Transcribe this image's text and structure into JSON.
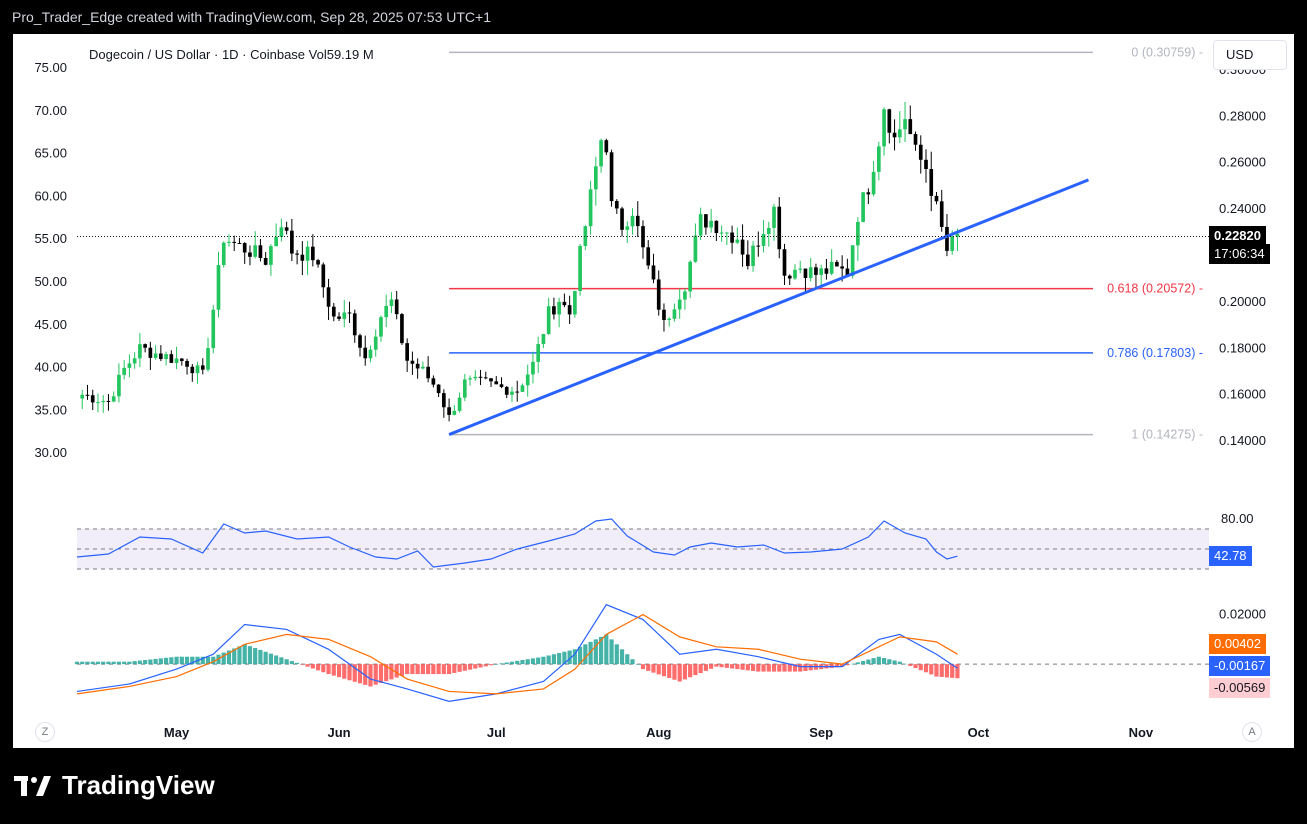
{
  "header": {
    "text": "Pro_Trader_Edge created with TradingView.com, Sep 28, 2025 07:53 UTC+1"
  },
  "legend": {
    "text": "Dogecoin / US Dollar · 1D · Coinbase  Vol59.19 M"
  },
  "currency_button": "USD",
  "buttons": {
    "left": "Z",
    "right": "A"
  },
  "footer": {
    "brand": "TradingView"
  },
  "colors": {
    "up": "#22c55e",
    "down": "#000000",
    "trend": "#2962ff",
    "fib_red": "#f23645",
    "fib_blue": "#2962ff",
    "fib_gray": "#b2b5be",
    "rsi": "#2962ff",
    "macd": "#2962ff",
    "signal": "#ff6d00"
  },
  "current": {
    "price": "0.22820",
    "countdown": "17:06:34"
  },
  "chart_data": [
    {
      "type": "candlestick",
      "title": "Dogecoin / US Dollar · 1D · Coinbase",
      "volume": "59.19 M",
      "x_labels": [
        "May",
        "Jun",
        "Jul",
        "Aug",
        "Sep",
        "Oct",
        "Nov"
      ],
      "left_axis": [
        "75.00",
        "70.00",
        "65.00",
        "60.00",
        "55.00",
        "50.00",
        "45.00",
        "40.00",
        "35.00",
        "30.00"
      ],
      "right_axis": [
        "0.30000",
        "0.28000",
        "0.26000",
        "0.24000",
        "0.22000",
        "0.20000",
        "0.18000",
        "0.16000",
        "0.14000"
      ],
      "ylim": [
        0.1301,
        0.3155
      ],
      "date_range": [
        "2025-04-12",
        "2025-11-14"
      ],
      "closes": [
        [
          "2025-04-13",
          0.16
        ],
        [
          "2025-04-18",
          0.157
        ],
        [
          "2025-04-21",
          0.171
        ],
        [
          "2025-04-24",
          0.18
        ],
        [
          "2025-04-28",
          0.177
        ],
        [
          "2025-05-03",
          0.174
        ],
        [
          "2025-05-06",
          0.168
        ],
        [
          "2025-05-08",
          0.197
        ],
        [
          "2025-05-10",
          0.228
        ],
        [
          "2025-05-12",
          0.225
        ],
        [
          "2025-05-15",
          0.222
        ],
        [
          "2025-05-18",
          0.218
        ],
        [
          "2025-05-21",
          0.235
        ],
        [
          "2025-05-23",
          0.222
        ],
        [
          "2025-05-27",
          0.22
        ],
        [
          "2025-05-31",
          0.193
        ],
        [
          "2025-06-03",
          0.194
        ],
        [
          "2025-06-06",
          0.176
        ],
        [
          "2025-06-09",
          0.194
        ],
        [
          "2025-06-11",
          0.2
        ],
        [
          "2025-06-14",
          0.175
        ],
        [
          "2025-06-17",
          0.17
        ],
        [
          "2025-06-20",
          0.162
        ],
        [
          "2025-06-22",
          0.15
        ],
        [
          "2025-06-25",
          0.165
        ],
        [
          "2025-06-29",
          0.165
        ],
        [
          "2025-07-02",
          0.163
        ],
        [
          "2025-07-05",
          0.162
        ],
        [
          "2025-07-08",
          0.173
        ],
        [
          "2025-07-11",
          0.195
        ],
        [
          "2025-07-13",
          0.201
        ],
        [
          "2025-07-15",
          0.195
        ],
        [
          "2025-07-18",
          0.233
        ],
        [
          "2025-07-21",
          0.27
        ],
        [
          "2025-07-22",
          0.268
        ],
        [
          "2025-07-23",
          0.241
        ],
        [
          "2025-07-25",
          0.233
        ],
        [
          "2025-07-27",
          0.24
        ],
        [
          "2025-07-29",
          0.222
        ],
        [
          "2025-07-31",
          0.207
        ],
        [
          "2025-08-02",
          0.19
        ],
        [
          "2025-08-04",
          0.2
        ],
        [
          "2025-08-06",
          0.208
        ],
        [
          "2025-08-09",
          0.235
        ],
        [
          "2025-08-11",
          0.235
        ],
        [
          "2025-08-14",
          0.23
        ],
        [
          "2025-08-16",
          0.228
        ],
        [
          "2025-08-18",
          0.217
        ],
        [
          "2025-08-21",
          0.232
        ],
        [
          "2025-08-23",
          0.24
        ],
        [
          "2025-08-25",
          0.212
        ],
        [
          "2025-08-28",
          0.215
        ],
        [
          "2025-08-31",
          0.212
        ],
        [
          "2025-09-03",
          0.214
        ],
        [
          "2025-09-06",
          0.213
        ],
        [
          "2025-09-08",
          0.238
        ],
        [
          "2025-09-10",
          0.25
        ],
        [
          "2025-09-12",
          0.27
        ],
        [
          "2025-09-13",
          0.285
        ],
        [
          "2025-09-15",
          0.27
        ],
        [
          "2025-09-17",
          0.28
        ],
        [
          "2025-09-19",
          0.264
        ],
        [
          "2025-09-21",
          0.258
        ],
        [
          "2025-09-23",
          0.24
        ],
        [
          "2025-09-25",
          0.222
        ],
        [
          "2025-09-27",
          0.228
        ]
      ],
      "trendline": {
        "start": [
          "2025-06-22",
          0.1428
        ],
        "end": [
          "2025-10-22",
          0.2526
        ]
      },
      "fib_levels": [
        {
          "level": "0",
          "value": 0.30759,
          "label": "0 (0.30759)",
          "color": "#b2b5be"
        },
        {
          "level": "0.618",
          "value": 0.20572,
          "label": "0.618 (0.20572)",
          "color": "#f23645"
        },
        {
          "level": "0.786",
          "value": 0.17803,
          "label": "0.786 (0.17803)",
          "color": "#2962ff"
        },
        {
          "level": "1",
          "value": 0.14275,
          "label": "1 (0.14275)",
          "color": "#b2b5be"
        }
      ]
    },
    {
      "type": "line",
      "title": "",
      "ylim": [
        17,
        105
      ],
      "axis_label": "80.00",
      "bands": [
        70,
        30
      ],
      "midline": 50,
      "last_value": "42.78",
      "series": [
        {
          "points": [
            [
              "2025-04-12",
              42
            ],
            [
              "2025-04-18",
              45
            ],
            [
              "2025-04-24",
              62
            ],
            [
              "2025-04-30",
              60
            ],
            [
              "2025-05-06",
              46
            ],
            [
              "2025-05-10",
              75
            ],
            [
              "2025-05-14",
              66
            ],
            [
              "2025-05-18",
              68
            ],
            [
              "2025-05-24",
              60
            ],
            [
              "2025-05-30",
              62
            ],
            [
              "2025-06-03",
              52
            ],
            [
              "2025-06-08",
              42
            ],
            [
              "2025-06-12",
              40
            ],
            [
              "2025-06-16",
              48
            ],
            [
              "2025-06-19",
              32
            ],
            [
              "2025-06-25",
              36
            ],
            [
              "2025-06-30",
              40
            ],
            [
              "2025-07-05",
              50
            ],
            [
              "2025-07-11",
              58
            ],
            [
              "2025-07-16",
              65
            ],
            [
              "2025-07-20",
              78
            ],
            [
              "2025-07-23",
              80
            ],
            [
              "2025-07-26",
              63
            ],
            [
              "2025-07-31",
              47
            ],
            [
              "2025-08-04",
              44
            ],
            [
              "2025-08-07",
              52
            ],
            [
              "2025-08-11",
              56
            ],
            [
              "2025-08-16",
              52
            ],
            [
              "2025-08-21",
              54
            ],
            [
              "2025-08-25",
              46
            ],
            [
              "2025-08-30",
              47
            ],
            [
              "2025-09-05",
              50
            ],
            [
              "2025-09-10",
              62
            ],
            [
              "2025-09-13",
              78
            ],
            [
              "2025-09-17",
              66
            ],
            [
              "2025-09-21",
              60
            ],
            [
              "2025-09-23",
              47
            ],
            [
              "2025-09-25",
              40
            ],
            [
              "2025-09-27",
              42.78
            ]
          ]
        }
      ]
    },
    {
      "type": "line",
      "title": "",
      "ylim": [
        -0.0185,
        0.0275
      ],
      "axis_label": "0.02000",
      "zero_line": 0,
      "labels": {
        "signal": "0.00402",
        "macd": "-0.00167",
        "histogram": "-0.00569"
      },
      "series": [
        {
          "points": [
            [
              "2025-04-12",
              -0.011
            ],
            [
              "2025-04-22",
              -0.008
            ],
            [
              "2025-05-01",
              -0.002
            ],
            [
              "2025-05-08",
              0.004
            ],
            [
              "2025-05-14",
              0.016
            ],
            [
              "2025-05-22",
              0.014
            ],
            [
              "2025-05-30",
              0.006
            ],
            [
              "2025-06-07",
              -0.006
            ],
            [
              "2025-06-14",
              -0.01
            ],
            [
              "2025-06-22",
              -0.015
            ],
            [
              "2025-07-01",
              -0.012
            ],
            [
              "2025-07-10",
              -0.007
            ],
            [
              "2025-07-16",
              0.004
            ],
            [
              "2025-07-22",
              0.024
            ],
            [
              "2025-07-29",
              0.018
            ],
            [
              "2025-08-05",
              0.004
            ],
            [
              "2025-08-12",
              0.006
            ],
            [
              "2025-08-20",
              0.003
            ],
            [
              "2025-08-28",
              -0.001
            ],
            [
              "2025-09-05",
              -0.001
            ],
            [
              "2025-09-12",
              0.01
            ],
            [
              "2025-09-16",
              0.012
            ],
            [
              "2025-09-23",
              0.004
            ],
            [
              "2025-09-27",
              -0.00167
            ]
          ]
        },
        {
          "points": [
            [
              "2025-04-12",
              -0.012
            ],
            [
              "2025-04-22",
              -0.009
            ],
            [
              "2025-05-01",
              -0.005
            ],
            [
              "2025-05-08",
              0.001
            ],
            [
              "2025-05-14",
              0.008
            ],
            [
              "2025-05-22",
              0.012
            ],
            [
              "2025-05-30",
              0.01
            ],
            [
              "2025-06-07",
              0.003
            ],
            [
              "2025-06-14",
              -0.006
            ],
            [
              "2025-06-22",
              -0.011
            ],
            [
              "2025-07-01",
              -0.012
            ],
            [
              "2025-07-10",
              -0.01
            ],
            [
              "2025-07-16",
              -0.002
            ],
            [
              "2025-07-22",
              0.012
            ],
            [
              "2025-07-29",
              0.02
            ],
            [
              "2025-08-05",
              0.011
            ],
            [
              "2025-08-12",
              0.007
            ],
            [
              "2025-08-20",
              0.006
            ],
            [
              "2025-08-28",
              0.002
            ],
            [
              "2025-09-05",
              0.0
            ],
            [
              "2025-09-12",
              0.007
            ],
            [
              "2025-09-16",
              0.011
            ],
            [
              "2025-09-23",
              0.009
            ],
            [
              "2025-09-27",
              0.00402
            ]
          ]
        }
      ]
    }
  ]
}
